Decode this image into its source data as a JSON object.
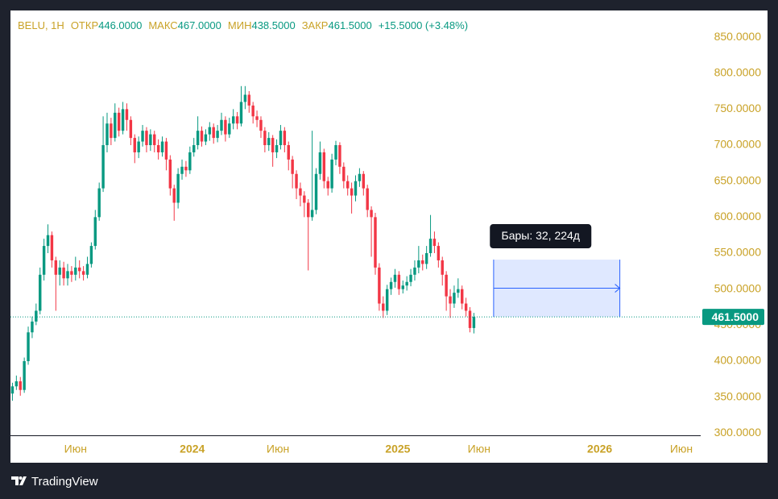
{
  "chart_data": {
    "type": "candlestick",
    "legend": {
      "symbol": "BELU, 1H",
      "open_label": "ОТКР",
      "open": "446.0000",
      "high_label": "МАКС",
      "high": "467.0000",
      "low_label": "МИН",
      "low": "438.5000",
      "close_label": "ЗАКР",
      "close": "461.5000",
      "change": "+15.5000 (+3.48%)"
    },
    "up_color": "#089981",
    "down_color": "#f23645",
    "open": [
      355,
      365,
      372,
      360,
      400,
      440,
      455,
      470,
      520,
      560,
      575,
      540,
      520,
      530,
      515,
      525,
      520,
      530,
      525,
      520,
      535,
      560,
      600,
      640,
      700,
      730,
      710,
      745,
      720,
      750,
      735,
      710,
      690,
      705,
      720,
      700,
      715,
      700,
      690,
      705,
      680,
      640,
      620,
      660,
      670,
      665,
      690,
      700,
      720,
      705,
      715,
      725,
      710,
      720,
      735,
      715,
      730,
      740,
      730,
      760,
      770,
      755,
      740,
      735,
      720,
      700,
      710,
      690,
      700,
      720,
      700,
      680,
      660,
      640,
      630,
      620,
      600,
      610,
      660,
      690,
      650,
      640,
      680,
      700,
      670,
      650,
      640,
      630,
      650,
      660,
      640,
      610,
      600,
      530,
      480,
      470,
      500,
      510,
      520,
      500,
      505,
      510,
      520,
      530,
      540,
      535,
      550,
      570,
      560,
      540,
      520,
      490,
      480,
      495,
      500,
      480,
      470,
      446
    ],
    "high": [
      370,
      380,
      378,
      405,
      448,
      462,
      480,
      530,
      570,
      590,
      580,
      545,
      540,
      538,
      535,
      532,
      545,
      540,
      532,
      545,
      565,
      610,
      648,
      740,
      745,
      738,
      758,
      752,
      760,
      758,
      740,
      715,
      712,
      728,
      725,
      722,
      720,
      708,
      712,
      710,
      686,
      645,
      668,
      680,
      678,
      698,
      710,
      740,
      726,
      722,
      732,
      730,
      728,
      745,
      740,
      738,
      750,
      746,
      782,
      782,
      775,
      760,
      748,
      740,
      725,
      718,
      714,
      708,
      728,
      725,
      705,
      685,
      665,
      648,
      636,
      625,
      720,
      668,
      705,
      695,
      656,
      688,
      706,
      704,
      676,
      658,
      648,
      658,
      668,
      664,
      645,
      615,
      606,
      536,
      490,
      506,
      516,
      528,
      525,
      512,
      518,
      528,
      540,
      560,
      548,
      560,
      603,
      580,
      565,
      545,
      525,
      500,
      505,
      515,
      505,
      488,
      475,
      467
    ],
    "low": [
      345,
      360,
      352,
      356,
      395,
      432,
      450,
      465,
      512,
      550,
      530,
      470,
      505,
      505,
      505,
      510,
      512,
      515,
      512,
      515,
      530,
      555,
      595,
      635,
      690,
      700,
      705,
      712,
      715,
      720,
      700,
      675,
      682,
      698,
      690,
      692,
      690,
      680,
      684,
      665,
      630,
      595,
      612,
      652,
      656,
      660,
      684,
      694,
      698,
      700,
      706,
      702,
      704,
      714,
      705,
      710,
      722,
      722,
      726,
      750,
      745,
      730,
      725,
      710,
      690,
      692,
      670,
      682,
      694,
      690,
      665,
      640,
      625,
      615,
      600,
      526,
      595,
      604,
      652,
      640,
      630,
      634,
      672,
      660,
      640,
      630,
      605,
      622,
      642,
      630,
      600,
      545,
      520,
      470,
      460,
      464,
      492,
      502,
      492,
      494,
      498,
      504,
      512,
      522,
      526,
      528,
      545,
      550,
      530,
      505,
      470,
      460,
      474,
      488,
      472,
      462,
      440,
      438.5
    ],
    "close": [
      365,
      372,
      360,
      400,
      440,
      455,
      470,
      520,
      560,
      575,
      540,
      520,
      530,
      515,
      525,
      520,
      530,
      525,
      520,
      535,
      560,
      600,
      640,
      700,
      730,
      710,
      745,
      720,
      750,
      735,
      710,
      690,
      705,
      720,
      700,
      715,
      700,
      690,
      705,
      680,
      640,
      620,
      660,
      670,
      665,
      690,
      700,
      720,
      705,
      715,
      725,
      710,
      720,
      735,
      715,
      730,
      740,
      730,
      760,
      770,
      755,
      740,
      735,
      720,
      700,
      710,
      690,
      700,
      720,
      700,
      680,
      660,
      640,
      630,
      620,
      600,
      610,
      660,
      690,
      650,
      640,
      680,
      700,
      670,
      650,
      640,
      630,
      650,
      660,
      640,
      610,
      600,
      530,
      480,
      470,
      500,
      510,
      520,
      500,
      505,
      510,
      520,
      530,
      540,
      535,
      550,
      570,
      560,
      540,
      520,
      490,
      480,
      495,
      500,
      480,
      470,
      446,
      461.5
    ],
    "xlim": [
      -0.5,
      174.5
    ],
    "xticks": [
      {
        "value": 16,
        "label": "Июн"
      },
      {
        "value": 45.6,
        "label": "2024"
      },
      {
        "value": 67.3,
        "label": "Июн"
      },
      {
        "value": 97.7,
        "label": "2025"
      },
      {
        "value": 118.3,
        "label": "Июн"
      },
      {
        "value": 148.9,
        "label": "2026"
      },
      {
        "value": 169.6,
        "label": "Июн"
      }
    ],
    "ylim": [
      297,
      887
    ],
    "yticks": [
      {
        "value": 300,
        "label": "300.0000"
      },
      {
        "value": 350,
        "label": "350.0000"
      },
      {
        "value": 400,
        "label": "400.0000"
      },
      {
        "value": 450,
        "label": "450.0000"
      },
      {
        "value": 500,
        "label": "500.0000"
      },
      {
        "value": 550,
        "label": "550.0000"
      },
      {
        "value": 600,
        "label": "600.0000"
      },
      {
        "value": 650,
        "label": "650.0000"
      },
      {
        "value": 700,
        "label": "700.0000"
      },
      {
        "value": 750,
        "label": "750.0000"
      },
      {
        "value": 800,
        "label": "800.0000"
      },
      {
        "value": 850,
        "label": "850.0000"
      }
    ],
    "grid": false,
    "last_price": {
      "value": 461.5,
      "label": "461.5000"
    },
    "measure": {
      "label": "Бары: 32, 224д",
      "x": [
        122,
        154
      ],
      "y": [
        461.5,
        541
      ]
    },
    "brand": "TradingView"
  }
}
